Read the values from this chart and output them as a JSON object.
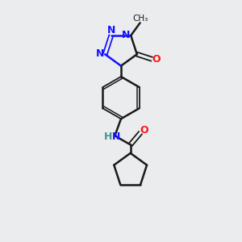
{
  "background_color": "#eaecee",
  "bond_color": "#1a1a1a",
  "nitrogen_color": "#1414ff",
  "oxygen_color": "#ff1414",
  "nh_n_color": "#1414ff",
  "nh_h_color": "#4a9090",
  "figsize": [
    3.0,
    3.0
  ],
  "dpi": 100,
  "xlim": [
    0,
    10
  ],
  "ylim": [
    0,
    10
  ]
}
